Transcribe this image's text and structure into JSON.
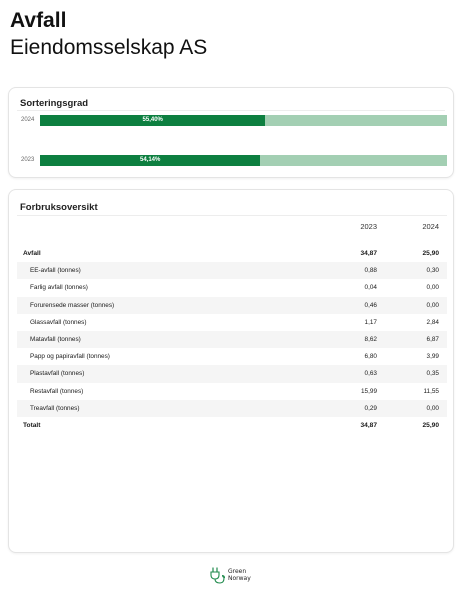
{
  "page": {
    "title": "Avfall",
    "subtitle": "Eiendomsselskap AS"
  },
  "sorting": {
    "title": "Sorteringsgrad",
    "bars": [
      {
        "year": "2024",
        "value": 55.4,
        "label": "55,40%"
      },
      {
        "year": "2023",
        "value": 54.14,
        "label": "54,14%"
      }
    ],
    "colors": {
      "fill": "#0d7f40",
      "track": "#a3cfb3"
    }
  },
  "usage": {
    "title": "Forbruksoversikt",
    "columns": [
      "2023",
      "2024"
    ],
    "group": {
      "label": "Avfall",
      "v2023": "34,87",
      "v2024": "25,90"
    },
    "rows": [
      {
        "label": "EE-avfall (tonnes)",
        "v2023": "0,88",
        "v2024": "0,30"
      },
      {
        "label": "Farlig avfall (tonnes)",
        "v2023": "0,04",
        "v2024": "0,00"
      },
      {
        "label": "Forurensede masser (tonnes)",
        "v2023": "0,46",
        "v2024": "0,00"
      },
      {
        "label": "Glassavfall (tonnes)",
        "v2023": "1,17",
        "v2024": "2,84"
      },
      {
        "label": "Matavfall (tonnes)",
        "v2023": "8,62",
        "v2024": "6,87"
      },
      {
        "label": "Papp og papiravfall (tonnes)",
        "v2023": "6,80",
        "v2024": "3,99"
      },
      {
        "label": "Plastavfall (tonnes)",
        "v2023": "0,63",
        "v2024": "0,35"
      },
      {
        "label": "Restavfall (tonnes)",
        "v2023": "15,99",
        "v2024": "11,55"
      },
      {
        "label": "Treavfall (tonnes)",
        "v2023": "0,29",
        "v2024": "0,00"
      }
    ],
    "total": {
      "label": "Totalt",
      "v2023": "34,87",
      "v2024": "25,90"
    }
  },
  "footer": {
    "logo_line1": "Green",
    "logo_line2": "Norway",
    "logo_icon": "plug-leaf-icon",
    "logo_color": "#1f8a4c"
  }
}
